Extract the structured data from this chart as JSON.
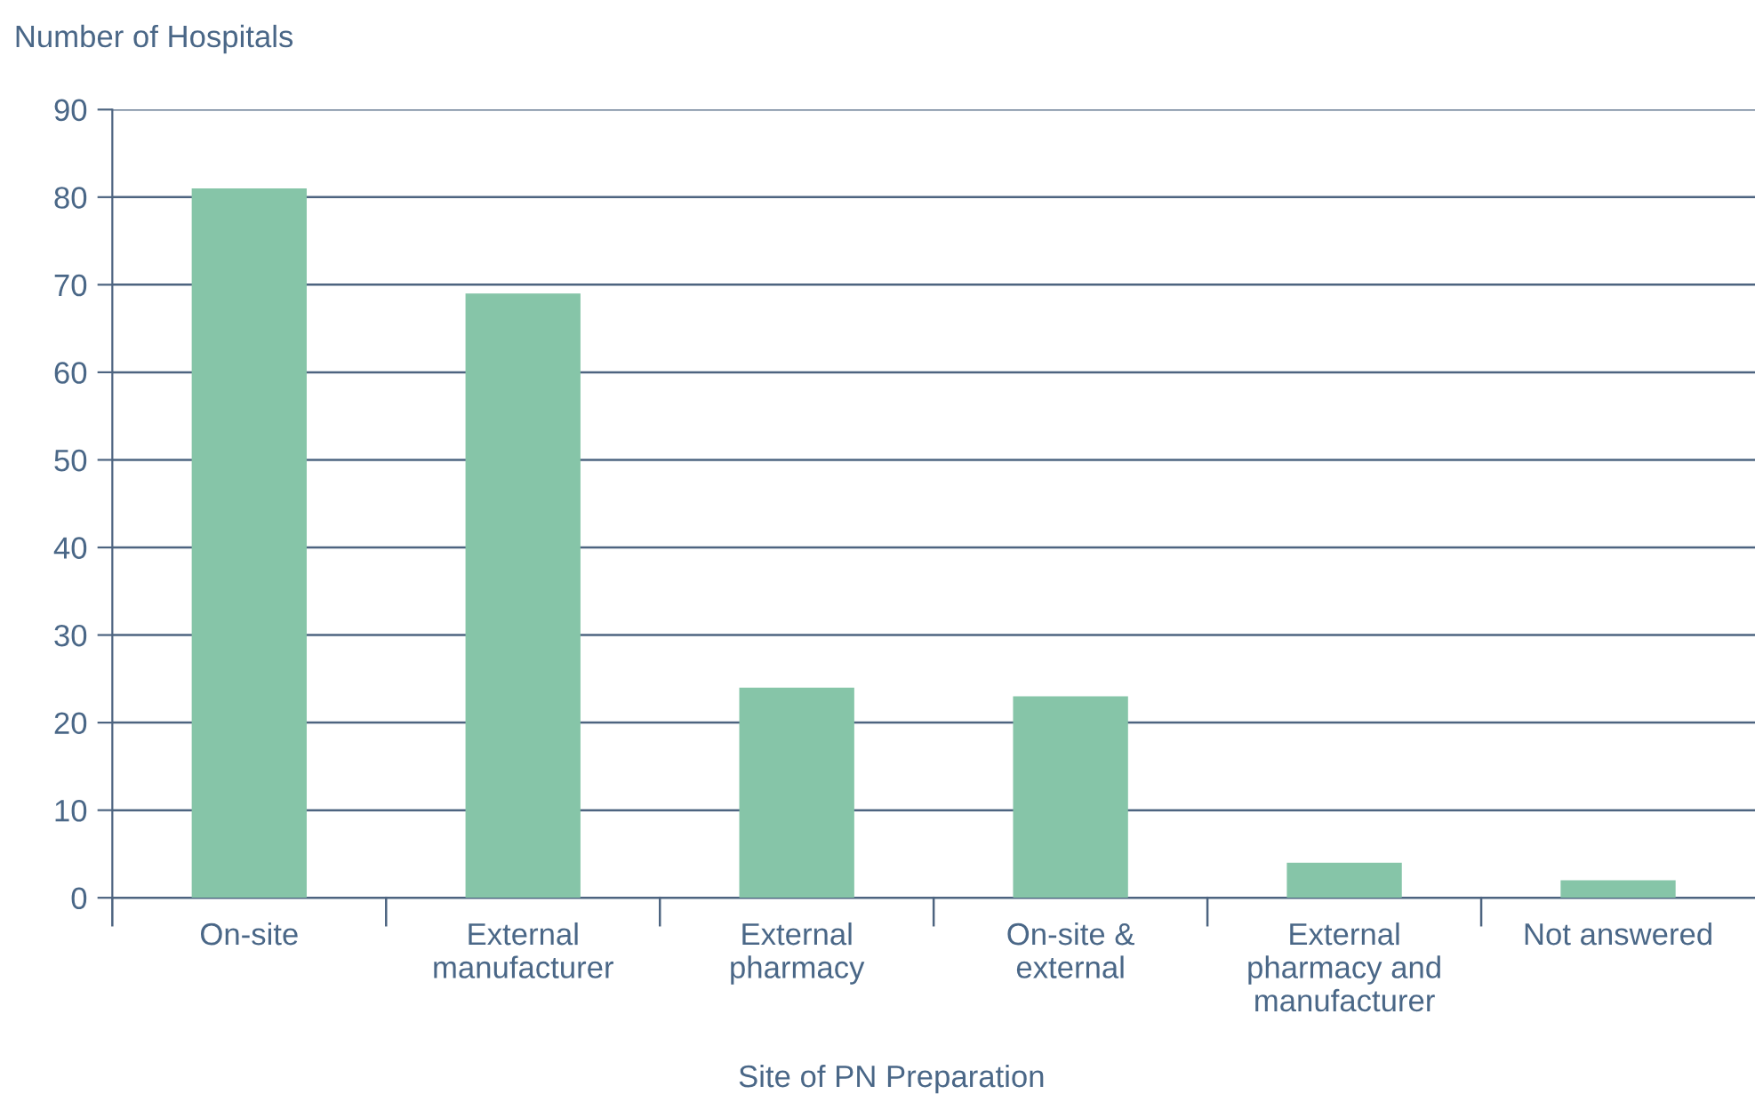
{
  "chart_data": {
    "type": "bar",
    "ylabel": "Number of Hospitals",
    "xlabel": "Site of PN Preparation",
    "categories": [
      "On-site",
      "External\nmanufacturer",
      "External\npharmacy",
      "On-site &\nexternal",
      "External\npharmacy and\nmanufacturer",
      "Not answered"
    ],
    "values": [
      81,
      69,
      24,
      23,
      4,
      2
    ],
    "color": "#86c5a8",
    "ylim": [
      0,
      90
    ],
    "yticks": [
      0,
      10,
      20,
      30,
      40,
      50,
      60,
      70,
      80,
      90
    ],
    "grid": "y",
    "legend": false
  }
}
